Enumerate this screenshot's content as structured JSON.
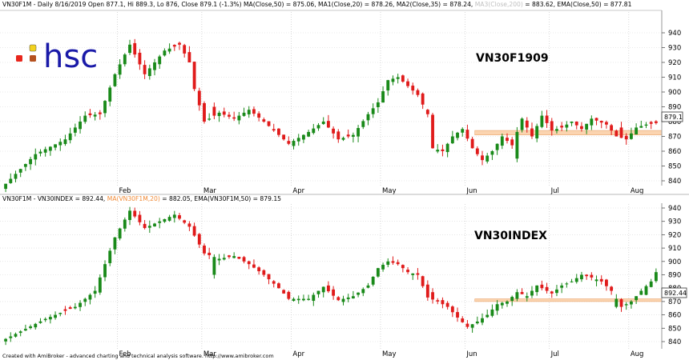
{
  "app": {
    "footer": "Created with AmiBroker - advanced charting and technical analysis software. http://www.amibroker.com"
  },
  "logo": {
    "text": "hsc",
    "colors": [
      "#e8261c",
      "#f2d21e",
      "#b5511f",
      "#b5511f"
    ]
  },
  "colors": {
    "up": "#1a8a1a",
    "down": "#e01b1b",
    "zone_fill": "#fbd4b0",
    "zone_stroke": "#e9a36a",
    "grid": "#c8c8c8",
    "ma_accent": "#f08a36"
  },
  "chart_data": [
    {
      "type": "candlestick",
      "title": "VN30F1909",
      "header_segments": [
        {
          "text": "VN30F1M - Daily 8/16/2019 Open 877.1, Hi 889.3, Lo 876, Close 879.1 (-1.3%) MA(Close,50) = 875.06, MA1(Close,20) = 878.26, MA2(Close,35) = 878.24, ",
          "color": "#000000"
        },
        {
          "text": "MA3(Close,200)",
          "color": "#c0c0c0"
        },
        {
          "text": " = 883.62, EMA(Close,50) = 877.81",
          "color": "#000000"
        }
      ],
      "ylim": [
        832,
        946
      ],
      "y_ticks": [
        "940",
        "930",
        "920",
        "910",
        "900",
        "890",
        "880",
        "870",
        "860",
        "850",
        "840"
      ],
      "last_value": "879.1",
      "zone": [
        871,
        874
      ],
      "months": [
        "Feb",
        "Mar",
        "Apr",
        "May",
        "Jun",
        "Jul",
        "Aug"
      ],
      "anchors": [
        [
          0,
          838
        ],
        [
          6,
          858
        ],
        [
          12,
          868
        ],
        [
          16,
          884
        ],
        [
          19,
          885
        ],
        [
          22,
          912
        ],
        [
          25,
          932
        ],
        [
          28,
          912
        ],
        [
          32,
          928
        ],
        [
          35,
          932
        ],
        [
          37,
          920
        ],
        [
          38,
          902
        ],
        [
          40,
          880
        ],
        [
          43,
          886
        ],
        [
          46,
          882
        ],
        [
          49,
          888
        ],
        [
          52,
          880
        ],
        [
          55,
          871
        ],
        [
          57,
          865
        ],
        [
          61,
          873
        ],
        [
          64,
          880
        ],
        [
          67,
          868
        ],
        [
          70,
          871
        ],
        [
          73,
          885
        ],
        [
          75,
          893
        ],
        [
          77,
          908
        ],
        [
          79,
          910
        ],
        [
          81,
          904
        ],
        [
          83,
          898
        ],
        [
          85,
          885
        ],
        [
          86,
          862
        ],
        [
          88,
          860
        ],
        [
          90,
          870
        ],
        [
          92,
          875
        ],
        [
          94,
          862
        ],
        [
          96,
          854
        ],
        [
          98,
          860
        ],
        [
          100,
          870
        ],
        [
          102,
          864
        ],
        [
          104,
          882
        ],
        [
          106,
          870
        ],
        [
          108,
          884
        ],
        [
          110,
          874
        ],
        [
          112,
          876
        ],
        [
          114,
          880
        ],
        [
          116,
          875
        ],
        [
          118,
          882
        ],
        [
          121,
          878
        ],
        [
          123,
          870
        ],
        [
          125,
          868
        ],
        [
          127,
          876
        ],
        [
          129,
          878
        ],
        [
          131,
          879
        ]
      ],
      "breaks": [
        [
          42,
          890
        ],
        [
          54,
          875
        ],
        [
          85,
          888
        ],
        [
          103,
          855
        ],
        [
          124,
          876
        ]
      ]
    },
    {
      "type": "candlestick",
      "title": "VN30INDEX",
      "header_segments": [
        {
          "text": "VN30F1M - VN30INDEX = 892.44, ",
          "color": "#000000"
        },
        {
          "text": "MA(VN30F1M,20)",
          "color": "#f08a36"
        },
        {
          "text": " = 882.05, EMA(VN30F1M,50) = 879.15",
          "color": "#000000"
        }
      ],
      "ylim": [
        832,
        946
      ],
      "y_ticks": [
        "940",
        "930",
        "920",
        "910",
        "900",
        "890",
        "880",
        "870",
        "860",
        "850",
        "840"
      ],
      "last_value": "892.44",
      "zone": [
        870,
        872
      ],
      "months": [
        "Feb",
        "Mar",
        "Apr",
        "May",
        "Jun",
        "Jul",
        "Aug"
      ],
      "anchors": [
        [
          0,
          842
        ],
        [
          8,
          857
        ],
        [
          14,
          866
        ],
        [
          18,
          878
        ],
        [
          22,
          918
        ],
        [
          25,
          938
        ],
        [
          28,
          925
        ],
        [
          31,
          930
        ],
        [
          34,
          935
        ],
        [
          37,
          926
        ],
        [
          40,
          906
        ],
        [
          43,
          902
        ],
        [
          46,
          904
        ],
        [
          49,
          898
        ],
        [
          52,
          890
        ],
        [
          55,
          880
        ],
        [
          57,
          872
        ],
        [
          61,
          872
        ],
        [
          64,
          881
        ],
        [
          67,
          871
        ],
        [
          70,
          874
        ],
        [
          73,
          882
        ],
        [
          75,
          895
        ],
        [
          77,
          900
        ],
        [
          79,
          898
        ],
        [
          81,
          892
        ],
        [
          83,
          890
        ],
        [
          85,
          873
        ],
        [
          87,
          870
        ],
        [
          89,
          866
        ],
        [
          91,
          858
        ],
        [
          93,
          851
        ],
        [
          95,
          855
        ],
        [
          97,
          860
        ],
        [
          99,
          868
        ],
        [
          101,
          870
        ],
        [
          103,
          877
        ],
        [
          105,
          874
        ],
        [
          107,
          882
        ],
        [
          110,
          876
        ],
        [
          112,
          882
        ],
        [
          114,
          885
        ],
        [
          116,
          890
        ],
        [
          118,
          888
        ],
        [
          120,
          885
        ],
        [
          122,
          878
        ],
        [
          124,
          866
        ],
        [
          126,
          870
        ],
        [
          128,
          878
        ],
        [
          130,
          885
        ],
        [
          131,
          892
        ]
      ],
      "breaks": [
        [
          42,
          890
        ],
        [
          86,
          877
        ],
        [
          123,
          866
        ],
        [
          129,
          875
        ]
      ]
    }
  ]
}
